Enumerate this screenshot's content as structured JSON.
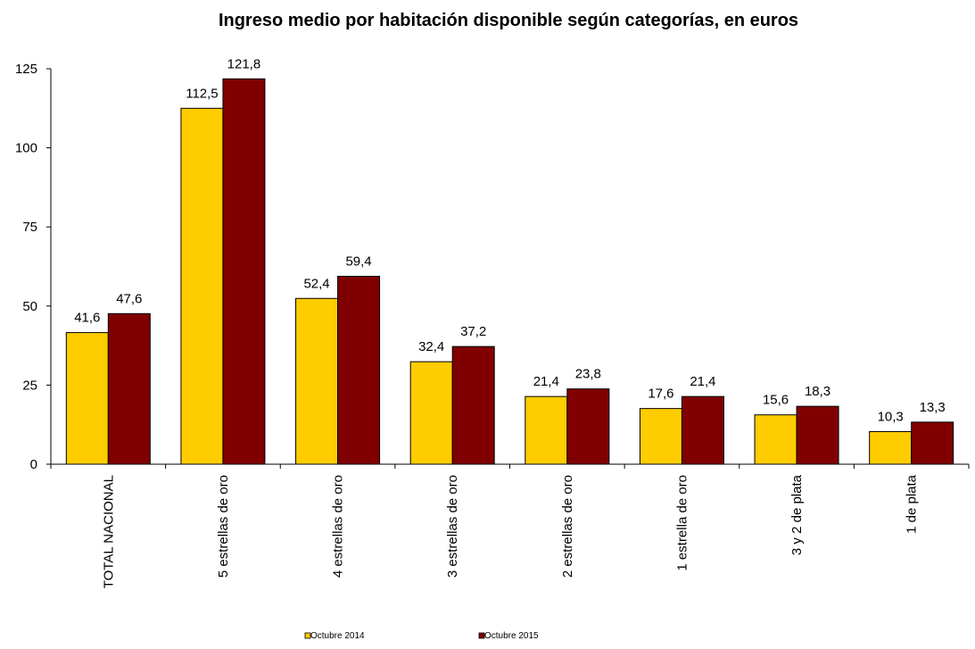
{
  "chart_data": {
    "type": "bar",
    "title": "Ingreso medio por habitación disponible según categorías, en euros",
    "categories": [
      "TOTAL NACIONAL",
      "5 estrellas de oro",
      "4 estrellas de oro",
      "3 estrellas de oro",
      "2 estrellas de oro",
      "1 estrella de oro",
      "3 y 2 de plata",
      "1 de plata"
    ],
    "series": [
      {
        "name": "Octubre 2014",
        "color": "#FFCC00",
        "values": [
          41.6,
          112.5,
          52.4,
          32.4,
          21.4,
          17.6,
          15.6,
          10.3
        ],
        "labels": [
          "41,6",
          "112,5",
          "52,4",
          "32,4",
          "21,4",
          "17,6",
          "15,6",
          "10,3"
        ]
      },
      {
        "name": "Octubre 2015",
        "color": "#800000",
        "values": [
          47.6,
          121.8,
          59.4,
          37.2,
          23.8,
          21.4,
          18.3,
          13.3
        ],
        "labels": [
          "47,6",
          "121,8",
          "59,4",
          "37,2",
          "23,8",
          "21,4",
          "18,3",
          "13,3"
        ]
      }
    ],
    "ylim": [
      0,
      125
    ],
    "yticks": [
      "0",
      "25",
      "50",
      "75",
      "100",
      "125"
    ],
    "xlabel": "",
    "ylabel": "",
    "grid": false,
    "legend_position": "bottom"
  }
}
